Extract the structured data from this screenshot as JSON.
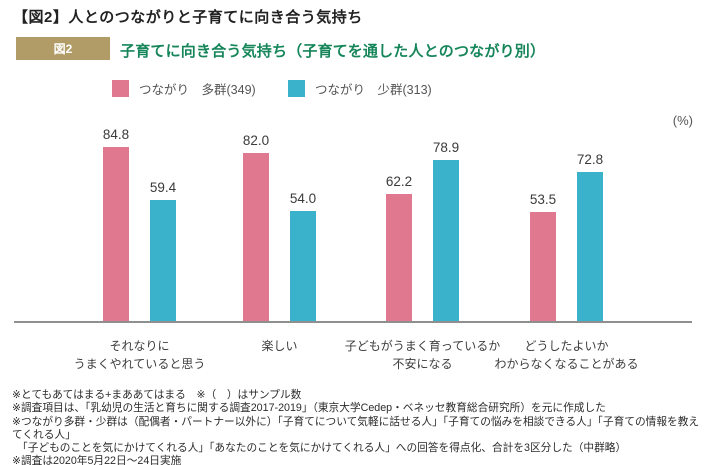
{
  "page_title": "【図2】人とのつながりと子育てに向き合う気持ち",
  "figure_header": {
    "badge": "図2",
    "title": "子育てに向き合う気持ち（子育てを通した人とのつながり別）"
  },
  "legend": {
    "items": [
      {
        "label": "つながり　多群(349)",
        "color": "#e0798f"
      },
      {
        "label": "つながり　少群(313)",
        "color": "#3ab2cb"
      }
    ]
  },
  "chart_data": {
    "type": "bar",
    "title": "子育てに向き合う気持ち（子育てを通した人とのつながり別）",
    "unit_label": "(%)",
    "categories": [
      [
        "それなりに",
        "うまくやれていると思う"
      ],
      [
        "楽しい"
      ],
      [
        "子どもがうまく育っているか",
        "不安になる"
      ],
      [
        "どうしたよいか",
        "わからなくなることがある"
      ]
    ],
    "series": [
      {
        "name": "つながり　多群(349)",
        "color": "#e0798f",
        "values": [
          84.8,
          82.0,
          62.2,
          53.5
        ],
        "value_labels": [
          "84.8",
          "82.0",
          "62.2",
          "53.5"
        ]
      },
      {
        "name": "つながり　少群(313)",
        "color": "#3ab2cb",
        "values": [
          59.4,
          54.0,
          78.9,
          72.8
        ],
        "value_labels": [
          "59.4",
          "54.0",
          "78.9",
          "72.8"
        ]
      }
    ],
    "ylim": [
      0,
      100
    ],
    "grid": false,
    "legend_position": "top"
  },
  "footnotes": [
    "※とてもあてはまる+まああてはまる　※（　）はサンプル数",
    "※調査項目は、「乳幼児の生活と育ちに関する調査2017-2019」（東京大学Cedep・ベネッセ教育総合研究所）を元に作成した",
    "※つながり多群・少群は（配偶者・パートナー以外に）「子育てについて気軽に話せる人」「子育ての悩みを相談できる人」「子育ての情報を教えてくれる人」",
    "「子どものことを気にかけてくれる人」「あなたのことを気にかけてくれる人」への回答を得点化、合計を3区分した（中群略）",
    "※調査は2020年5月22日～24日実施"
  ],
  "colors": {
    "badge_bg": "#b19c67",
    "subtitle_green": "#16865a",
    "axis": "#8f8f8f",
    "pink": "#e0798f",
    "teal": "#3ab2cb"
  }
}
